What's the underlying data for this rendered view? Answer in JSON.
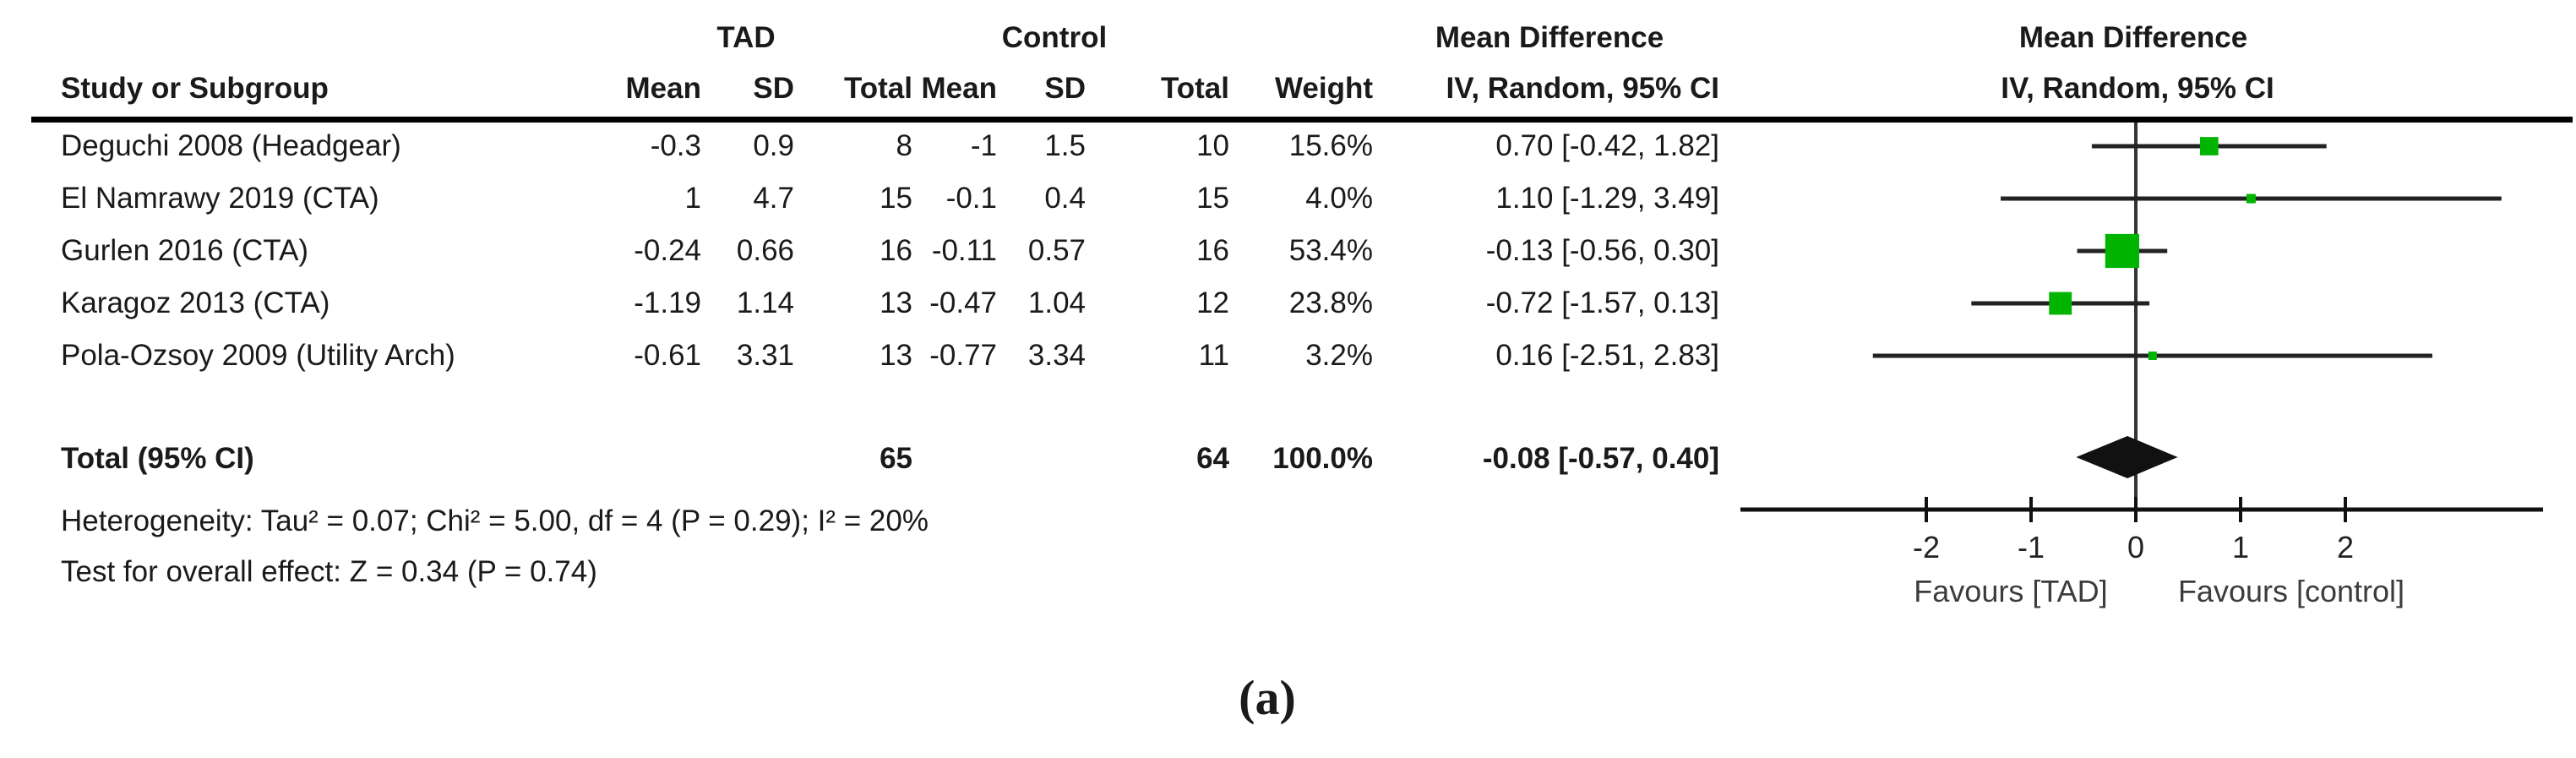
{
  "table": {
    "group_headers": {
      "tad": "TAD",
      "control": "Control",
      "md_left": "Mean Difference",
      "md_right": "Mean Difference"
    },
    "col_headers": {
      "study": "Study or Subgroup",
      "mean1": "Mean",
      "sd1": "SD",
      "total1": "Total",
      "mean2": "Mean",
      "sd2": "SD",
      "total2": "Total",
      "weight": "Weight",
      "ci": "IV, Random, 95% CI",
      "ci_right": "IV, Random, 95% CI"
    },
    "rows": [
      {
        "study": "Deguchi 2008 (Headgear)",
        "mean1": "-0.3",
        "sd1": "0.9",
        "total1": "8",
        "mean2": "-1",
        "sd2": "1.5",
        "total2": "10",
        "weight": "15.6%",
        "ci": "0.70 [-0.42, 1.82]"
      },
      {
        "study": "El Namrawy 2019 (CTA)",
        "mean1": "1",
        "sd1": "4.7",
        "total1": "15",
        "mean2": "-0.1",
        "sd2": "0.4",
        "total2": "15",
        "weight": "4.0%",
        "ci": "1.10 [-1.29, 3.49]"
      },
      {
        "study": "Gurlen 2016 (CTA)",
        "mean1": "-0.24",
        "sd1": "0.66",
        "total1": "16",
        "mean2": "-0.11",
        "sd2": "0.57",
        "total2": "16",
        "weight": "53.4%",
        "ci": "-0.13 [-0.56, 0.30]"
      },
      {
        "study": "Karagoz 2013 (CTA)",
        "mean1": "-1.19",
        "sd1": "1.14",
        "total1": "13",
        "mean2": "-0.47",
        "sd2": "1.04",
        "total2": "12",
        "weight": "23.8%",
        "ci": "-0.72 [-1.57, 0.13]"
      },
      {
        "study": "Pola-Ozsoy 2009 (Utility Arch)",
        "mean1": "-0.61",
        "sd1": "3.31",
        "total1": "13",
        "mean2": "-0.77",
        "sd2": "3.34",
        "total2": "11",
        "weight": "3.2%",
        "ci": "0.16 [-2.51, 2.83]"
      }
    ],
    "total_row": {
      "label": "Total (95% CI)",
      "total1": "65",
      "total2": "64",
      "weight": "100.0%",
      "ci": "-0.08 [-0.57, 0.40]"
    },
    "heterogeneity": "Heterogeneity: Tau² = 0.07; Chi² = 5.00, df = 4 (P = 0.29); I² = 20%",
    "overall_effect": "Test for overall effect: Z = 0.34 (P = 0.74)"
  },
  "caption": "(a)",
  "chart_data": {
    "type": "forest",
    "effect_measure": "Mean Difference, IV, Random, 95% CI",
    "studies": [
      {
        "name": "Deguchi 2008 (Headgear)",
        "md": 0.7,
        "lo": -0.42,
        "hi": 1.82,
        "weight_pct": 15.6
      },
      {
        "name": "El Namrawy 2019 (CTA)",
        "md": 1.1,
        "lo": -1.29,
        "hi": 3.49,
        "weight_pct": 4.0
      },
      {
        "name": "Gurlen 2016 (CTA)",
        "md": -0.13,
        "lo": -0.56,
        "hi": 0.3,
        "weight_pct": 53.4
      },
      {
        "name": "Karagoz 2013 (CTA)",
        "md": -0.72,
        "lo": -1.57,
        "hi": 0.13,
        "weight_pct": 23.8
      },
      {
        "name": "Pola-Ozsoy 2009 (Utility Arch)",
        "md": 0.16,
        "lo": -2.51,
        "hi": 2.83,
        "weight_pct": 3.2
      }
    ],
    "total": {
      "label": "Total (95% CI)",
      "md": -0.08,
      "lo": -0.57,
      "hi": 0.4,
      "weight_pct": 100.0
    },
    "axis_ticks": [
      -2,
      -1,
      0,
      1,
      2
    ],
    "xlim": [
      -2.6,
      3.6
    ],
    "favours_left": "Favours [TAD]",
    "favours_right": "Favours [control]",
    "marker_color": "#00b400",
    "line_color": "#222222",
    "diamond_color": "#111111"
  }
}
